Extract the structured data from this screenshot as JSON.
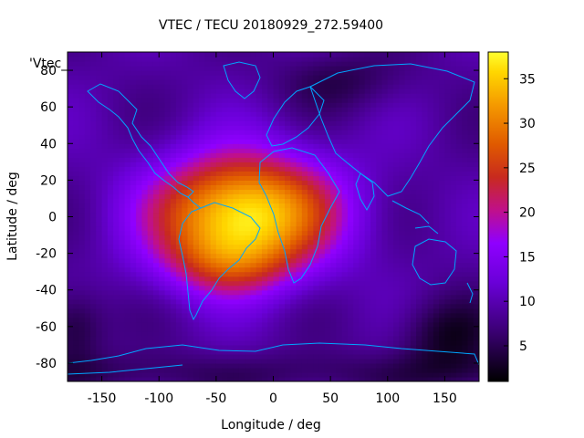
{
  "chart_data": {
    "type": "heatmap",
    "title": "VTEC / TECU 20180929_272.59400",
    "xlabel": "Longitude / deg",
    "ylabel": "Latitude / deg",
    "legend_key": "'Vtec_",
    "xlim": [
      -180,
      180
    ],
    "ylim": [
      -90,
      90
    ],
    "x_ticks": [
      -150,
      -100,
      -50,
      0,
      50,
      100,
      150
    ],
    "y_ticks": [
      -80,
      -60,
      -40,
      -20,
      0,
      20,
      40,
      60,
      80
    ],
    "colorbar": {
      "range": [
        1,
        38
      ],
      "ticks": [
        5,
        10,
        15,
        20,
        25,
        30,
        35
      ]
    },
    "peak": {
      "center_lon": -25,
      "center_lat": 3,
      "vtec_max": 38
    },
    "notes": "Global vertical total electron content map with continental outlines overlaid."
  },
  "colors": {
    "coastline": "#00a6ff",
    "background": "#ffffff",
    "axis": "#000000"
  }
}
